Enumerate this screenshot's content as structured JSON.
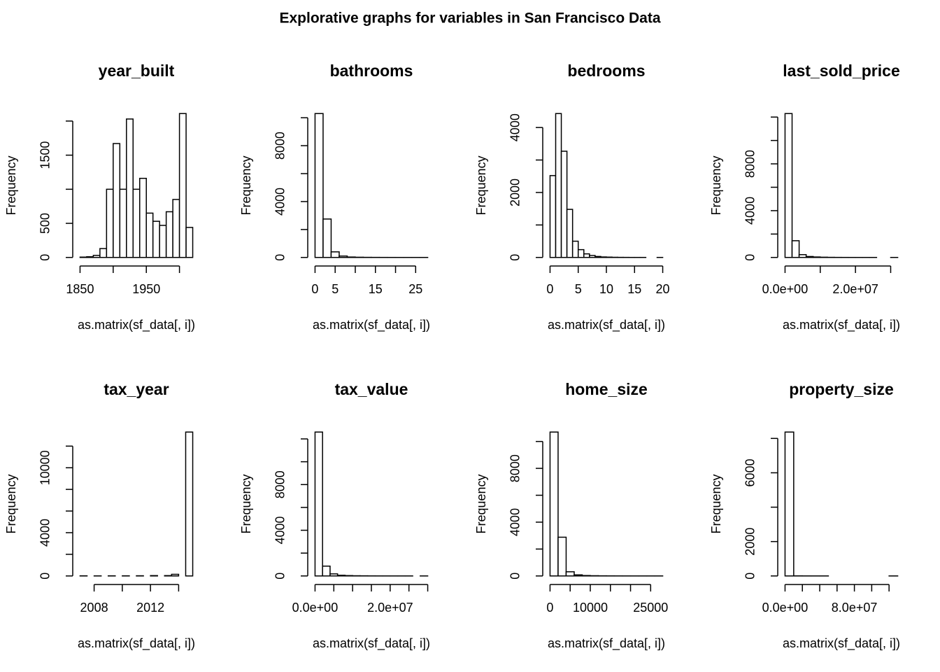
{
  "title": "Explorative graphs for variables in San Francisco Data",
  "chart_data": [
    {
      "type": "histogram",
      "title": "year_built",
      "xlabel": "as.matrix(sf_data[, i])",
      "ylabel": "Frequency",
      "color": "#ffffff",
      "edgecolor": "#000000",
      "bins": [
        1850,
        1860,
        1870,
        1880,
        1890,
        1900,
        1910,
        1920,
        1930,
        1940,
        1950,
        1960,
        1970,
        1980,
        1990,
        2000,
        2010,
        2020
      ],
      "values": [
        5,
        10,
        30,
        130,
        1000,
        1670,
        1000,
        2030,
        1000,
        1160,
        650,
        530,
        470,
        670,
        850,
        2110,
        440
      ],
      "xlim": [
        1850,
        2020
      ],
      "ylim": [
        0,
        2110
      ],
      "xticks": [
        1850,
        {
          "value": 1900,
          "label": null
        },
        1950,
        {
          "value": 2000,
          "label": null
        }
      ],
      "yticks": [
        0,
        500,
        {
          "value": 1000,
          "label": null
        },
        1500,
        {
          "value": 2000,
          "label": null
        }
      ]
    },
    {
      "type": "histogram",
      "title": "bathrooms",
      "xlabel": "as.matrix(sf_data[, i])",
      "ylabel": "Frequency",
      "color": "#ffffff",
      "edgecolor": "#000000",
      "bins": [
        0,
        2,
        4,
        6,
        8,
        10,
        12,
        14,
        16,
        18,
        20,
        22,
        24,
        26,
        28
      ],
      "values": [
        10300,
        2750,
        400,
        100,
        30,
        15,
        8,
        5,
        3,
        2,
        1,
        1,
        1,
        1
      ],
      "xlim": [
        0,
        28
      ],
      "ylim": [
        0,
        10300
      ],
      "xticks": [
        0,
        5,
        {
          "value": 10,
          "label": null
        },
        15,
        {
          "value": 20,
          "label": null
        },
        25
      ],
      "yticks": [
        0,
        {
          "value": 2000,
          "label": null
        },
        4000,
        {
          "value": 6000,
          "label": null
        },
        8000,
        {
          "value": 10000,
          "label": null
        }
      ]
    },
    {
      "type": "histogram",
      "title": "bedrooms",
      "xlabel": "as.matrix(sf_data[, i])",
      "ylabel": "Frequency",
      "color": "#ffffff",
      "edgecolor": "#000000",
      "bins": [
        0,
        1,
        2,
        3,
        4,
        5,
        6,
        7,
        8,
        9,
        10,
        11,
        12,
        13,
        14,
        15,
        16,
        17,
        18,
        19,
        20
      ],
      "values": [
        2520,
        4430,
        3270,
        1480,
        500,
        240,
        110,
        60,
        30,
        15,
        10,
        5,
        3,
        2,
        1,
        1,
        1,
        0,
        0,
        1
      ],
      "xlim": [
        0,
        20
      ],
      "ylim": [
        0,
        4430
      ],
      "xticks": [
        0,
        5,
        10,
        15,
        20
      ],
      "yticks": [
        0,
        {
          "value": 1000,
          "label": null
        },
        2000,
        {
          "value": 3000,
          "label": null
        },
        4000
      ]
    },
    {
      "type": "histogram",
      "title": "last_sold_price",
      "xlabel": "as.matrix(sf_data[, i])",
      "ylabel": "Frequency",
      "color": "#ffffff",
      "edgecolor": "#000000",
      "bins": [
        0,
        2000000,
        4000000,
        6000000,
        8000000,
        10000000,
        12000000,
        14000000,
        16000000,
        18000000,
        20000000,
        22000000,
        24000000,
        26000000,
        28000000,
        30000000,
        32000000
      ],
      "values": [
        12300,
        1430,
        240,
        80,
        40,
        20,
        10,
        5,
        3,
        2,
        1,
        1,
        1,
        0,
        0,
        1
      ],
      "xlim": [
        0,
        32000000
      ],
      "ylim": [
        0,
        12300
      ],
      "xticks": [
        {
          "value": 0,
          "label": "0.0e+00"
        },
        {
          "value": 10000000,
          "label": null
        },
        {
          "value": 20000000,
          "label": "2.0e+07"
        },
        {
          "value": 30000000,
          "label": null
        }
      ],
      "yticks": [
        0,
        {
          "value": 2000,
          "label": null
        },
        4000,
        {
          "value": 6000,
          "label": null
        },
        8000,
        {
          "value": 10000,
          "label": null
        },
        {
          "value": 12000,
          "label": null
        }
      ]
    },
    {
      "type": "histogram",
      "title": "tax_year",
      "xlabel": "as.matrix(sf_data[, i])",
      "ylabel": "Frequency",
      "color": "#ffffff",
      "edgecolor": "#000000",
      "bins": [
        2007,
        2007.5,
        2008,
        2008.5,
        2009,
        2009.5,
        2010,
        2010.5,
        2011,
        2011.5,
        2012,
        2012.5,
        2013,
        2013.5,
        2014,
        2014.5,
        2015
      ],
      "values": [
        10,
        0,
        5,
        0,
        10,
        0,
        10,
        0,
        15,
        0,
        30,
        0,
        30,
        150,
        0,
        13300
      ],
      "xlim": [
        2007,
        2015
      ],
      "ylim": [
        0,
        13300
      ],
      "xticks": [
        2008,
        {
          "value": 2010,
          "label": null
        },
        2012,
        {
          "value": 2014,
          "label": null
        }
      ],
      "yticks": [
        0,
        {
          "value": 2000,
          "label": null
        },
        4000,
        {
          "value": 6000,
          "label": null
        },
        {
          "value": 8000,
          "label": null
        },
        10000,
        {
          "value": 12000,
          "label": null
        }
      ]
    },
    {
      "type": "histogram",
      "title": "tax_value",
      "xlabel": "as.matrix(sf_data[, i])",
      "ylabel": "Frequency",
      "color": "#ffffff",
      "edgecolor": "#000000",
      "bins": [
        0,
        2000000,
        4000000,
        6000000,
        8000000,
        10000000,
        12000000,
        14000000,
        16000000,
        18000000,
        20000000,
        22000000,
        24000000,
        26000000,
        28000000,
        30000000
      ],
      "values": [
        12600,
        860,
        180,
        60,
        30,
        15,
        10,
        5,
        3,
        2,
        1,
        1,
        1,
        0,
        1
      ],
      "xlim": [
        0,
        30000000
      ],
      "ylim": [
        0,
        12600
      ],
      "xticks": [
        {
          "value": 0,
          "label": "0.0e+00"
        },
        {
          "value": 5000000,
          "label": null
        },
        {
          "value": 10000000,
          "label": null
        },
        {
          "value": 15000000,
          "label": null
        },
        {
          "value": 20000000,
          "label": "2.0e+07"
        },
        {
          "value": 25000000,
          "label": null
        },
        {
          "value": 30000000,
          "label": null
        }
      ],
      "yticks": [
        0,
        {
          "value": 2000,
          "label": null
        },
        4000,
        {
          "value": 6000,
          "label": null
        },
        8000,
        {
          "value": 10000,
          "label": null
        },
        {
          "value": 12000,
          "label": null
        }
      ]
    },
    {
      "type": "histogram",
      "title": "home_size",
      "xlabel": "as.matrix(sf_data[, i])",
      "ylabel": "Frequency",
      "color": "#ffffff",
      "edgecolor": "#000000",
      "bins": [
        0,
        2000,
        4000,
        6000,
        8000,
        10000,
        12000,
        14000,
        16000,
        18000,
        20000,
        22000,
        24000,
        26000,
        28000
      ],
      "values": [
        10700,
        2880,
        310,
        80,
        30,
        15,
        8,
        5,
        3,
        2,
        1,
        1,
        1,
        1
      ],
      "xlim": [
        0,
        28000
      ],
      "ylim": [
        0,
        10700
      ],
      "xticks": [
        0,
        {
          "value": 5000,
          "label": null
        },
        10000,
        {
          "value": 15000,
          "label": null
        },
        {
          "value": 20000,
          "label": null
        },
        25000
      ],
      "yticks": [
        0,
        {
          "value": 2000,
          "label": null
        },
        4000,
        {
          "value": 6000,
          "label": null
        },
        8000,
        {
          "value": 10000,
          "label": null
        }
      ]
    },
    {
      "type": "histogram",
      "title": "property_size",
      "xlabel": "as.matrix(sf_data[, i])",
      "ylabel": "Frequency",
      "color": "#ffffff",
      "edgecolor": "#000000",
      "bins": [
        0,
        10000000,
        20000000,
        30000000,
        40000000,
        50000000,
        60000000,
        70000000,
        80000000,
        90000000,
        100000000,
        110000000,
        120000000,
        130000000
      ],
      "values": [
        8370,
        5,
        2,
        1,
        1,
        0,
        0,
        0,
        0,
        0,
        0,
        0,
        1
      ],
      "xlim": [
        0,
        130000000
      ],
      "ylim": [
        0,
        8370
      ],
      "xticks": [
        {
          "value": 0,
          "label": "0.0e+00"
        },
        {
          "value": 20000000,
          "label": null
        },
        {
          "value": 40000000,
          "label": null
        },
        {
          "value": 60000000,
          "label": null
        },
        {
          "value": 80000000,
          "label": "8.0e+07"
        },
        {
          "value": 100000000,
          "label": null
        },
        {
          "value": 120000000,
          "label": null
        }
      ],
      "yticks": [
        0,
        2000,
        {
          "value": 4000,
          "label": null
        },
        6000,
        {
          "value": 8000,
          "label": null
        }
      ]
    }
  ]
}
